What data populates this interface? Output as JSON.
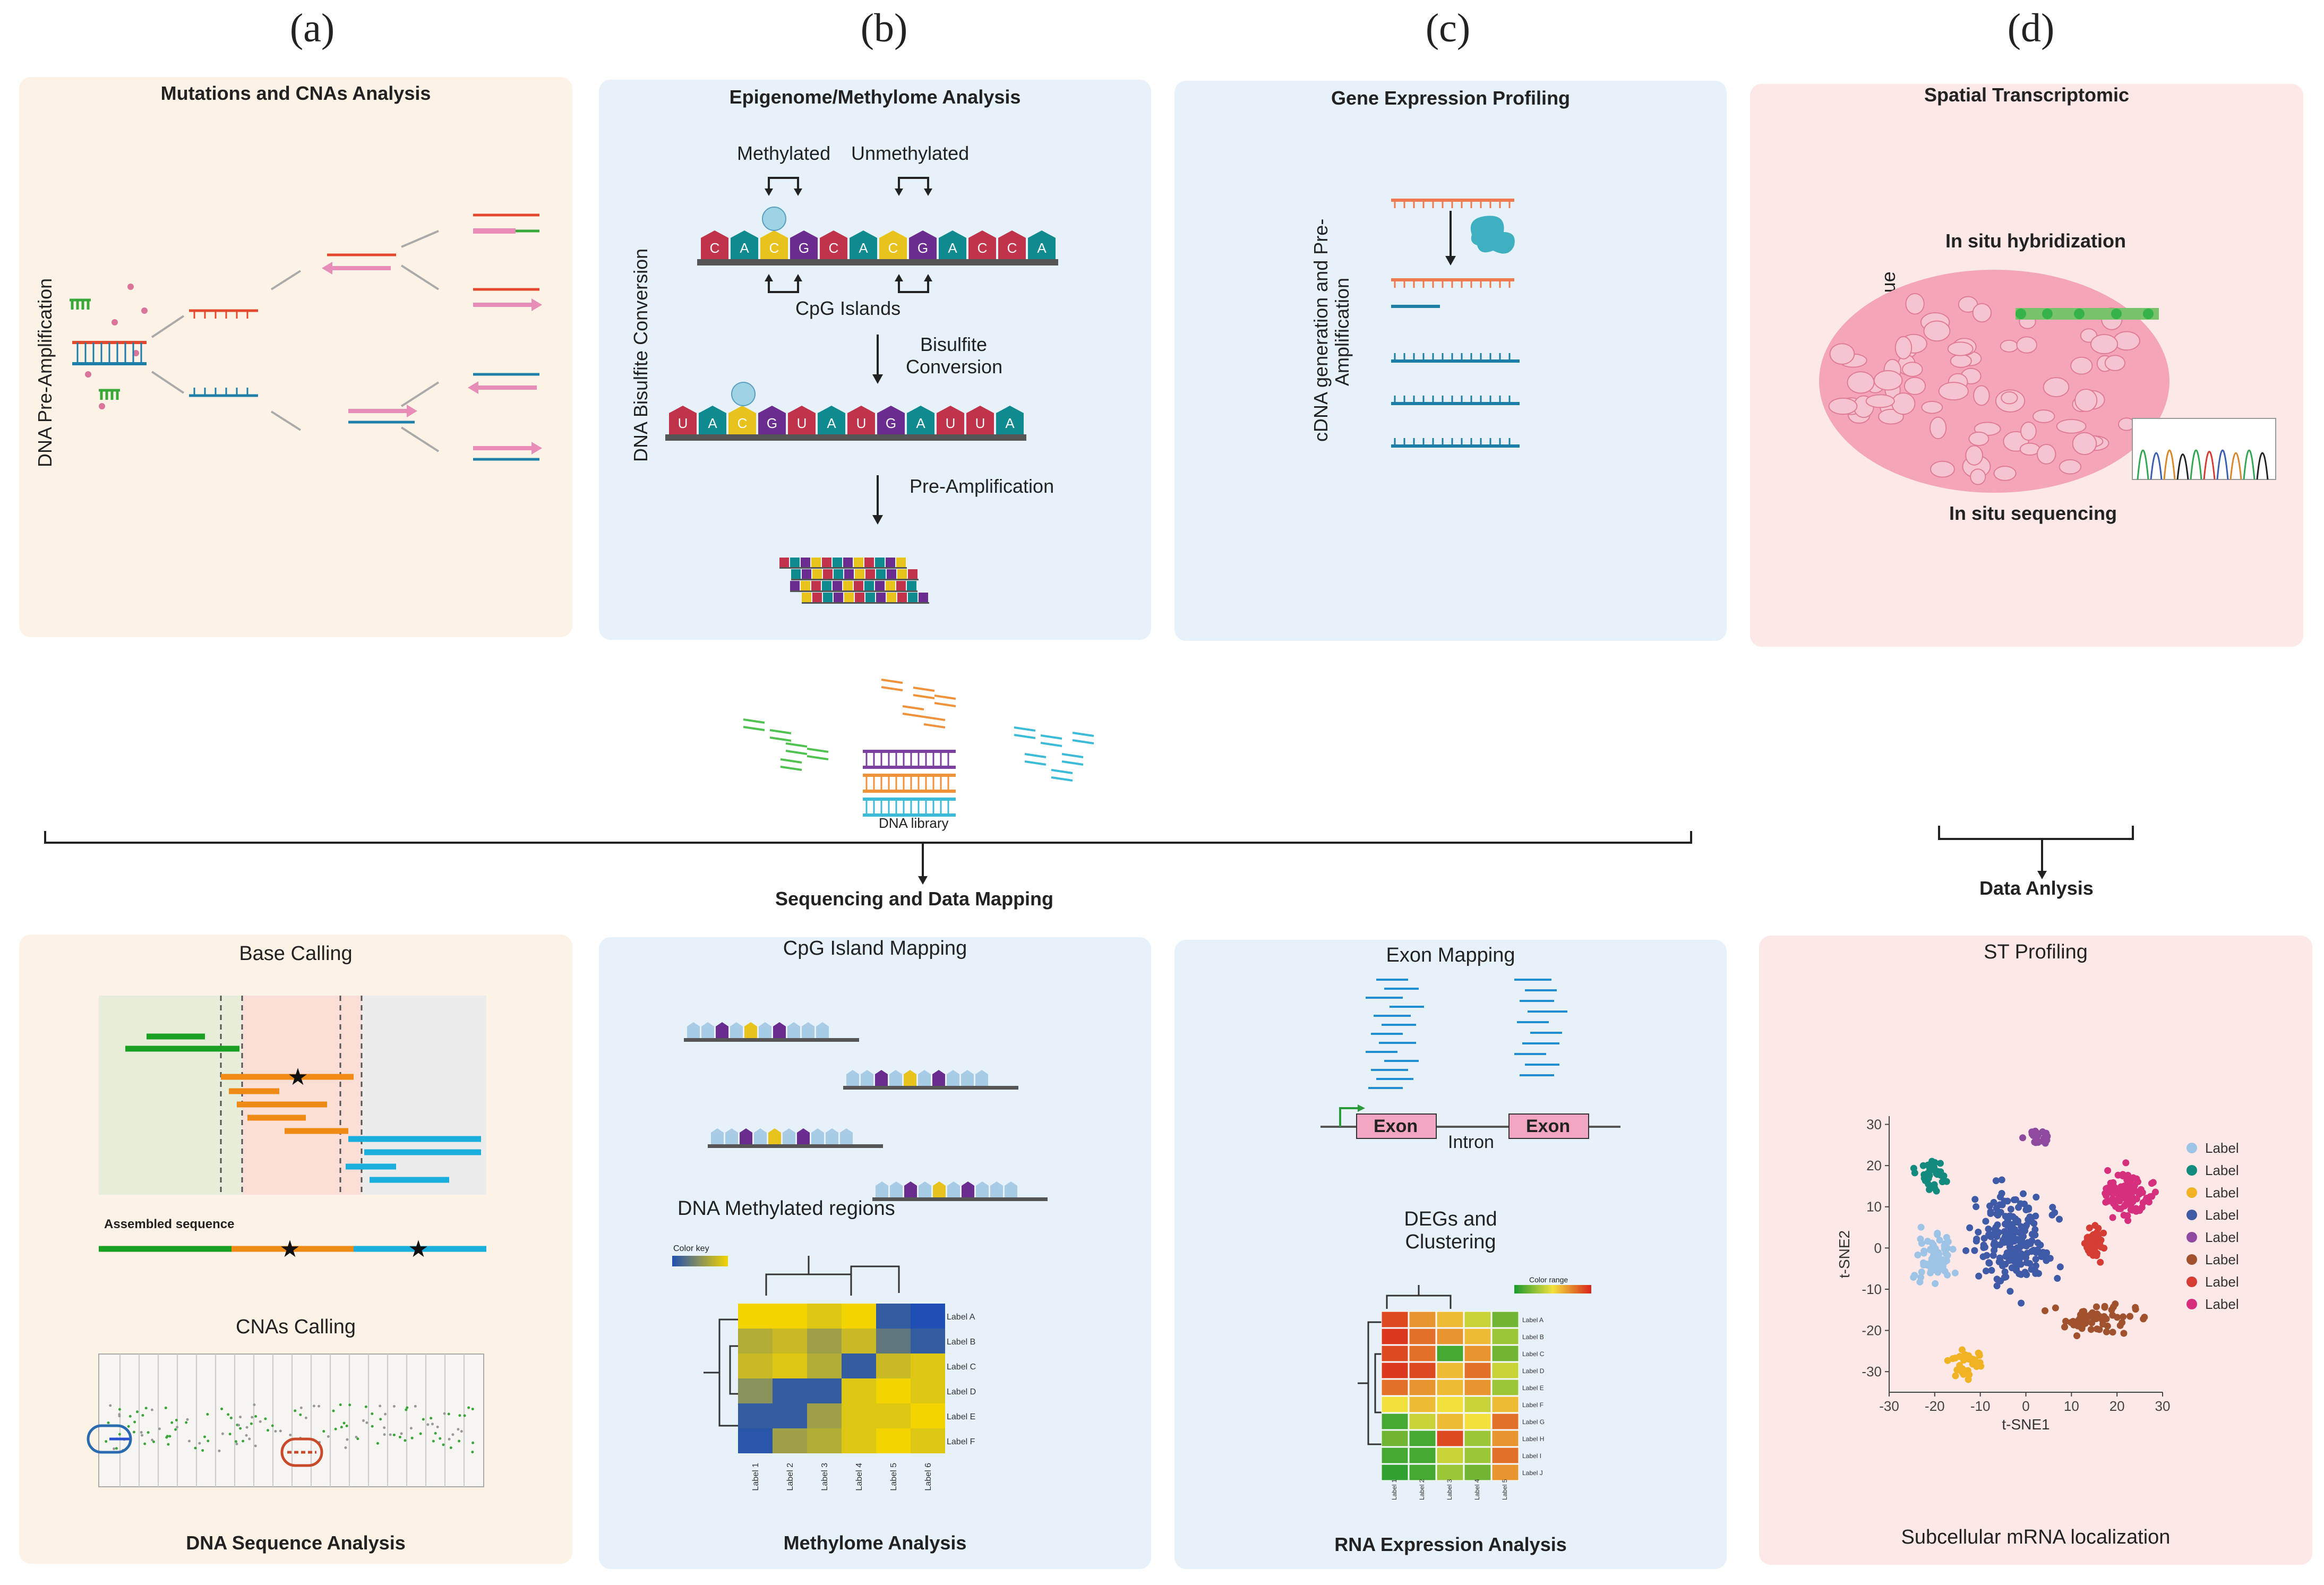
{
  "letters": {
    "a": "(a)",
    "b": "(b)",
    "c": "(c)",
    "d": "(d)"
  },
  "panel_a": {
    "title": "Mutations and CNAs Analysis",
    "vertical_label": "DNA Pre-Amplification"
  },
  "panel_b": {
    "title": "Epigenome/Methylome Analysis",
    "vertical_label": "DNA Bisulfite Conversion",
    "methylated": "Methylated",
    "unmethylated": "Unmethylated",
    "cpg_islands": "CpG Islands",
    "bisulfite_1": "Bisulfite",
    "bisulfite_2": "Conversion",
    "pre_amp": "Pre-Amplification",
    "seq_top": [
      "C",
      "A",
      "C",
      "G",
      "C",
      "A",
      "C",
      "G",
      "A",
      "C",
      "C",
      "A"
    ],
    "seq_bottom": [
      "U",
      "A",
      "C",
      "G",
      "U",
      "A",
      "U",
      "G",
      "A",
      "U",
      "U",
      "A"
    ]
  },
  "panel_c": {
    "title": "Gene Expression Profiling",
    "vertical_label_1": "cDNA generation and Pre-",
    "vertical_label_2": "Amplification"
  },
  "panel_d": {
    "title": "Spatial Transcriptomic",
    "ish": "In situ hybridization",
    "iss": "In situ  sequencing",
    "tissue": "Tumor Tissue"
  },
  "library": {
    "label": "DNA library"
  },
  "sequencing": {
    "label": "Sequencing and Data Mapping"
  },
  "data_analysis": {
    "label": "Data Anlysis"
  },
  "bottom_a": {
    "base_calling": "Base Calling",
    "assembled": "Assembled sequence",
    "cnas_calling": "CNAs Calling",
    "footer": "DNA Sequence Analysis"
  },
  "bottom_b": {
    "cpg_mapping": "CpG Island Mapping",
    "methylated_regions": "DNA Methylated regions",
    "color_key": "Color key",
    "footer": "Methylome Analysis",
    "row_labels": [
      "Label A",
      "Label B",
      "Label C",
      "Label D",
      "Label E",
      "Label F"
    ],
    "col_labels": [
      "Label 1",
      "Label 2",
      "Label 3",
      "Label 4",
      "Label 5",
      "Label 6"
    ]
  },
  "bottom_c": {
    "exon_mapping": "Exon Mapping",
    "exon_1": "Exon",
    "exon_2": "Exon",
    "intron": "Intron",
    "degs_1": "DEGs and",
    "degs_2": "Clustering",
    "color_range": "Color range",
    "footer": "RNA Expression Analysis",
    "row_labels": [
      "Label A",
      "Label B",
      "Label C",
      "Label D",
      "Label E",
      "Label F",
      "Label G",
      "Label H",
      "Label I",
      "Label J"
    ],
    "col_labels": [
      "Label 1",
      "Label 2",
      "Label 3",
      "Label 4",
      "Label 5"
    ]
  },
  "bottom_d": {
    "title": "ST Profiling",
    "footer": "Subcellular mRNA localization"
  },
  "chart_data": {
    "type": "scatter",
    "title": "",
    "xlabel": "t-SNE1",
    "ylabel": "t-SNE2",
    "xlim": [
      -30,
      30
    ],
    "ylim": [
      -35,
      32
    ],
    "xticks": [
      -30,
      -20,
      -10,
      0,
      10,
      20,
      30
    ],
    "yticks": [
      30,
      20,
      10,
      0,
      -10,
      -20,
      -30
    ],
    "legend_position": "right",
    "series": [
      {
        "name": "Label",
        "color": "#9dc3e6",
        "center": [
          -20,
          -2
        ],
        "spread": [
          6,
          9
        ],
        "count": 70
      },
      {
        "name": "Label",
        "color": "#138a7e",
        "center": [
          -21,
          18
        ],
        "spread": [
          5,
          5
        ],
        "count": 35
      },
      {
        "name": "Label",
        "color": "#f0b323",
        "center": [
          -13,
          -28
        ],
        "spread": [
          5,
          5
        ],
        "count": 35
      },
      {
        "name": "Label",
        "color": "#3f5aa6",
        "center": [
          -3,
          2
        ],
        "spread": [
          12,
          16
        ],
        "count": 200
      },
      {
        "name": "Label",
        "color": "#8e4a9e",
        "center": [
          3,
          27
        ],
        "spread": [
          5,
          3
        ],
        "count": 25
      },
      {
        "name": "Label",
        "color": "#a0512d",
        "center": [
          15,
          -17
        ],
        "spread": [
          12,
          5
        ],
        "count": 60
      },
      {
        "name": "Label",
        "color": "#d43c34",
        "center": [
          15,
          1
        ],
        "spread": [
          4,
          6
        ],
        "count": 40
      },
      {
        "name": "Label",
        "color": "#d62f7d",
        "center": [
          22,
          13
        ],
        "spread": [
          7,
          8
        ],
        "count": 90
      }
    ]
  }
}
